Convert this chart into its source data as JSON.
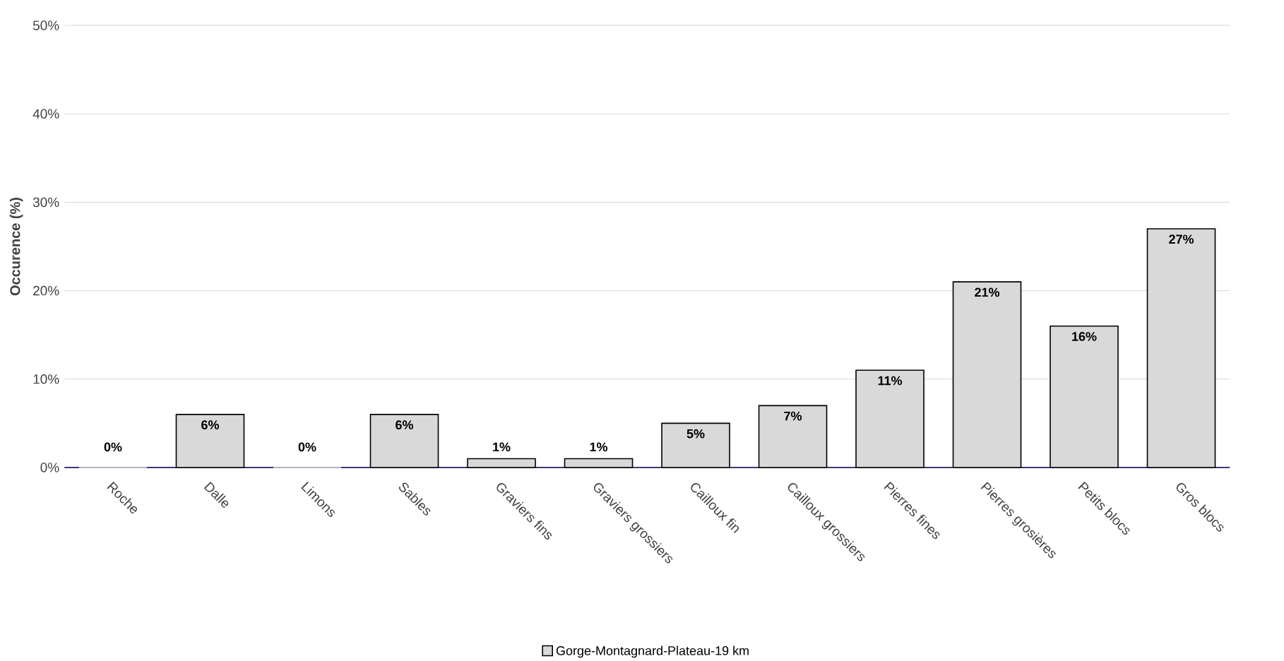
{
  "chart_data": {
    "type": "bar",
    "categories": [
      "Roche",
      "Dalle",
      "Limons",
      "Sables",
      "Graviers fins",
      "Graviers grossiers",
      "Cailloux fin",
      "Cailloux grossiers",
      "Pierres fines",
      "Pierres grosières",
      "Petits blocs",
      "Gros blocs"
    ],
    "series": [
      {
        "name": "Gorge-Montagnard-Plateau-19 km",
        "color": "#d9d9d9",
        "values": [
          0,
          6,
          0,
          6,
          1,
          1,
          5,
          7,
          11,
          21,
          16,
          27
        ],
        "value_labels": [
          "0%",
          "6%",
          "0%",
          "6%",
          "1%",
          "1%",
          "5%",
          "7%",
          "11%",
          "21%",
          "16%",
          "27%"
        ]
      }
    ],
    "ylabel": "Occurence (%)",
    "ylim": [
      0,
      50
    ],
    "yticks": [
      {
        "value": 0,
        "label": "0%"
      },
      {
        "value": 10,
        "label": "10%"
      },
      {
        "value": 20,
        "label": "20%"
      },
      {
        "value": 30,
        "label": "30%"
      },
      {
        "value": 40,
        "label": "40%"
      },
      {
        "value": 50,
        "label": "50%"
      }
    ],
    "grid": "y",
    "legend": "bottom"
  }
}
